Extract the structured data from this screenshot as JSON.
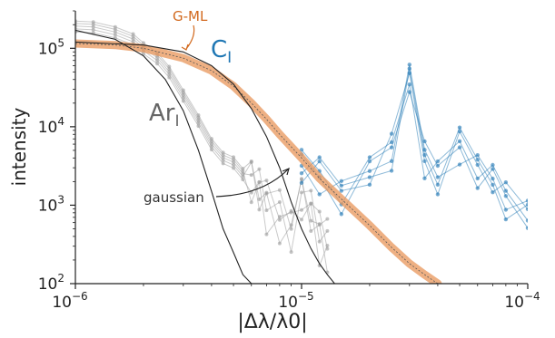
{
  "chart_data": {
    "type": "line",
    "xlabel": "|Δλ/λ0|",
    "ylabel": "intensity",
    "xscale": "log",
    "yscale": "log",
    "xlim": [
      1e-06,
      0.0001
    ],
    "ylim": [
      100,
      300000
    ],
    "grid": false,
    "x_ticks": [
      {
        "value": 1e-06,
        "mant": "10",
        "exp": "−6"
      },
      {
        "value": 1e-05,
        "mant": "10",
        "exp": "−5"
      },
      {
        "value": 0.0001,
        "mant": "10",
        "exp": "−4"
      }
    ],
    "y_ticks": [
      {
        "value": 100,
        "mant": "10",
        "exp": "2"
      },
      {
        "value": 1000,
        "mant": "10",
        "exp": "3"
      },
      {
        "value": 10000,
        "mant": "10",
        "exp": "4"
      },
      {
        "value": 100000,
        "mant": "10",
        "exp": "5"
      }
    ],
    "annotations": [
      {
        "text": "Ar",
        "sub": "I",
        "color": "#666666"
      },
      {
        "text": "C",
        "sub": "I",
        "color": "#1f77b4"
      },
      {
        "text": "G-ML",
        "color": "#d2691e"
      },
      {
        "text": "gaussian",
        "color": "#333333"
      }
    ],
    "series": [
      {
        "kind": "measured-Ar",
        "color": "#9e9e9e",
        "x": [
          1e-06,
          1.2e-06,
          1.5e-06,
          1.8e-06,
          2e-06,
          2.3e-06,
          2.6e-06,
          3e-06,
          3.5e-06,
          4e-06,
          4.5e-06,
          5e-06,
          5.5e-06,
          6e-06,
          6.5e-06,
          7e-06,
          8e-06,
          9e-06,
          1e-05,
          1.1e-05,
          1.2e-05,
          1.3e-05
        ],
        "values": [
          190000,
          185000,
          160000,
          130000,
          100000,
          75000,
          50000,
          25000,
          12000,
          6000,
          4000,
          3500,
          2500,
          2000,
          1500,
          1000,
          700,
          500,
          1200,
          800,
          400,
          300
        ]
      },
      {
        "kind": "measured-C",
        "color": "#1f77b4",
        "x": [
          1e-05,
          1.2e-05,
          1.5e-05,
          2e-05,
          2.5e-05,
          3e-05,
          3.5e-05,
          4e-05,
          5e-05,
          6e-05,
          7e-05,
          8e-05,
          0.0001
        ],
        "values": [
          3500,
          2500,
          1400,
          2500,
          5000,
          38000,
          4000,
          2500,
          6000,
          3000,
          2000,
          1200,
          700
        ]
      },
      {
        "kind": "G-ML fit",
        "color": "#e8965a",
        "x": [
          1e-06,
          1.5e-06,
          2e-06,
          3e-06,
          4e-06,
          5e-06,
          6e-06,
          7e-06,
          8e-06,
          1e-05,
          1.2e-05,
          1.5e-05,
          2e-05,
          2.5e-05,
          3e-05,
          3.5e-05,
          4e-05
        ],
        "values": [
          115000,
          110000,
          100000,
          75000,
          52000,
          33000,
          20000,
          12500,
          8000,
          4000,
          2200,
          1200,
          550,
          290,
          180,
          130,
          100
        ]
      },
      {
        "kind": "gaussian-1",
        "color": "#222222",
        "x": [
          1e-06,
          1.5e-06,
          2e-06,
          2.5e-06,
          3e-06,
          3.5e-06,
          4e-06,
          4.5e-06,
          5e-06,
          5.5e-06,
          6e-06
        ],
        "values": [
          170000,
          130000,
          80000,
          40000,
          16000,
          5000,
          1500,
          500,
          250,
          130,
          100
        ]
      },
      {
        "kind": "gaussian-2",
        "color": "#222222",
        "x": [
          1e-06,
          2e-06,
          3e-06,
          4e-06,
          5e-06,
          6e-06,
          7e-06,
          8e-06,
          9e-06,
          1e-05,
          1.1e-05,
          1.2e-05,
          1.3e-05,
          1.4e-05
        ],
        "values": [
          120000,
          110000,
          90000,
          60000,
          35000,
          17000,
          7500,
          3000,
          1100,
          500,
          280,
          180,
          130,
          100
        ]
      }
    ]
  }
}
